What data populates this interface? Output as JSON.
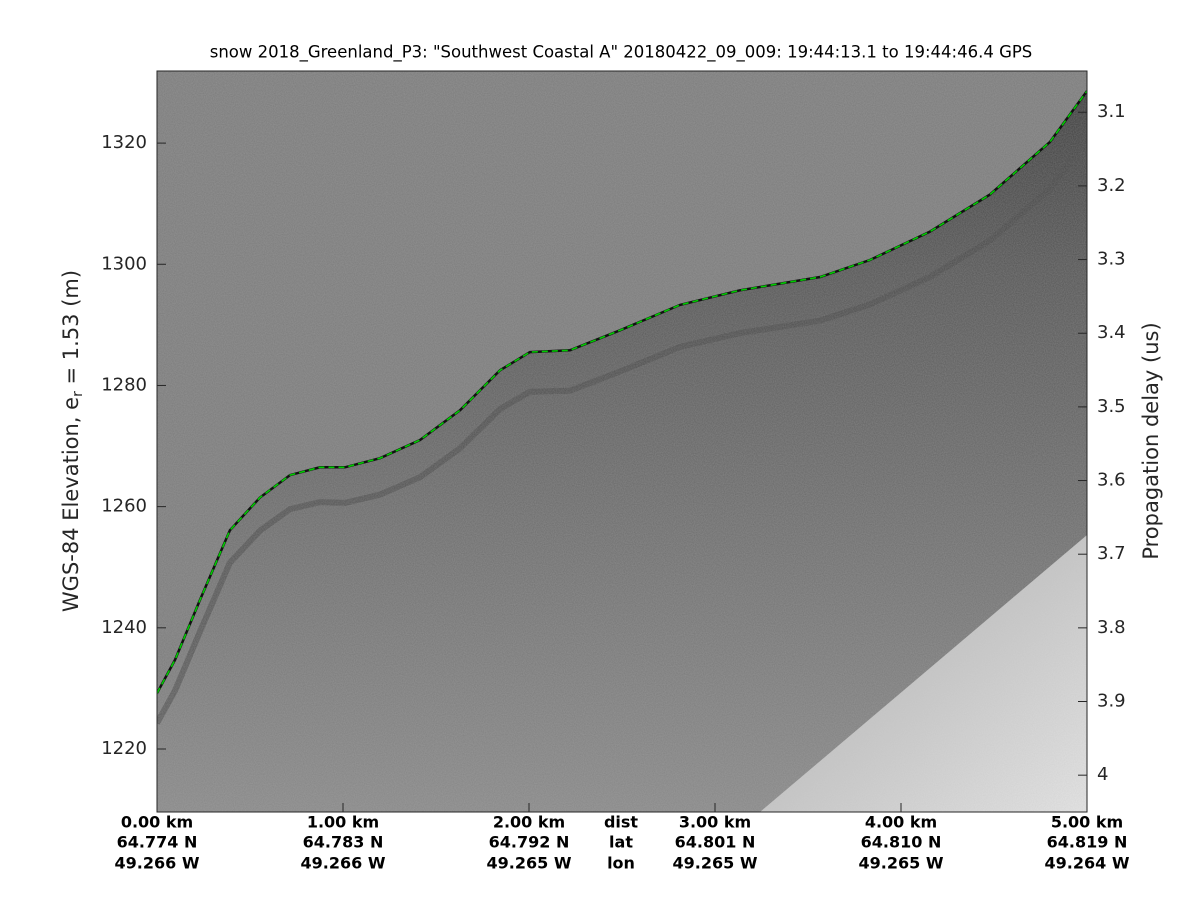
{
  "chart_data": {
    "type": "line",
    "title": "snow 2018_Greenland_P3: \"Southwest Coastal A\"  20180422_09_009: 19:44:13.1 to 19:44:46.4 GPS",
    "ylabel": [
      "WGS-84 Elevation, e",
      "r",
      " = 1.53 (m)"
    ],
    "y2label": "Propagation delay (us)",
    "xlim": [
      0,
      5
    ],
    "xticks": [
      {
        "value": 0,
        "label": "0.00 km"
      },
      {
        "value": 1,
        "label": "1.00 km"
      },
      {
        "value": 2,
        "label": "2.00 km"
      },
      {
        "value": 3,
        "label": "3.00 km"
      },
      {
        "value": 4,
        "label": "4.00 km"
      },
      {
        "value": 5,
        "label": "5.00 km"
      }
    ],
    "lat_labels": [
      "64.774 N",
      "64.783 N",
      "64.792 N",
      "64.801 N",
      "64.810 N",
      "64.819 N"
    ],
    "lon_labels": [
      "49.266 W",
      "49.266 W",
      "49.265 W",
      "49.265 W",
      "49.265 W",
      "49.264 W"
    ],
    "row_labels": [
      "dist",
      "lat",
      "lon"
    ],
    "ylim": [
      1209.6,
      1331.9
    ],
    "yticks": [
      1220,
      1240,
      1260,
      1280,
      1300,
      1320
    ],
    "y2lim": [
      4.05,
      3.044
    ],
    "y2ticks": [
      3.1,
      3.2,
      3.3,
      3.4,
      3.5,
      3.6,
      3.7,
      3.8,
      3.9,
      4
    ],
    "series": [
      {
        "name": "surface",
        "color": "#00cc00",
        "x": [
          0,
          0.097,
          0.231,
          0.392,
          0.554,
          0.715,
          0.876,
          1.011,
          1.199,
          1.414,
          1.629,
          1.844,
          2.005,
          2.22,
          2.489,
          2.812,
          3.134,
          3.565,
          3.833,
          4.156,
          4.478,
          4.801,
          5.0
        ],
        "values": [
          1229.2,
          1234.7,
          1244.6,
          1256.1,
          1261.5,
          1265.2,
          1266.5,
          1266.5,
          1268.0,
          1271.0,
          1275.9,
          1282.5,
          1285.5,
          1285.8,
          1289.1,
          1293.3,
          1295.7,
          1297.9,
          1300.7,
          1305.4,
          1311.5,
          1320.2,
          1328.6
        ]
      }
    ]
  }
}
